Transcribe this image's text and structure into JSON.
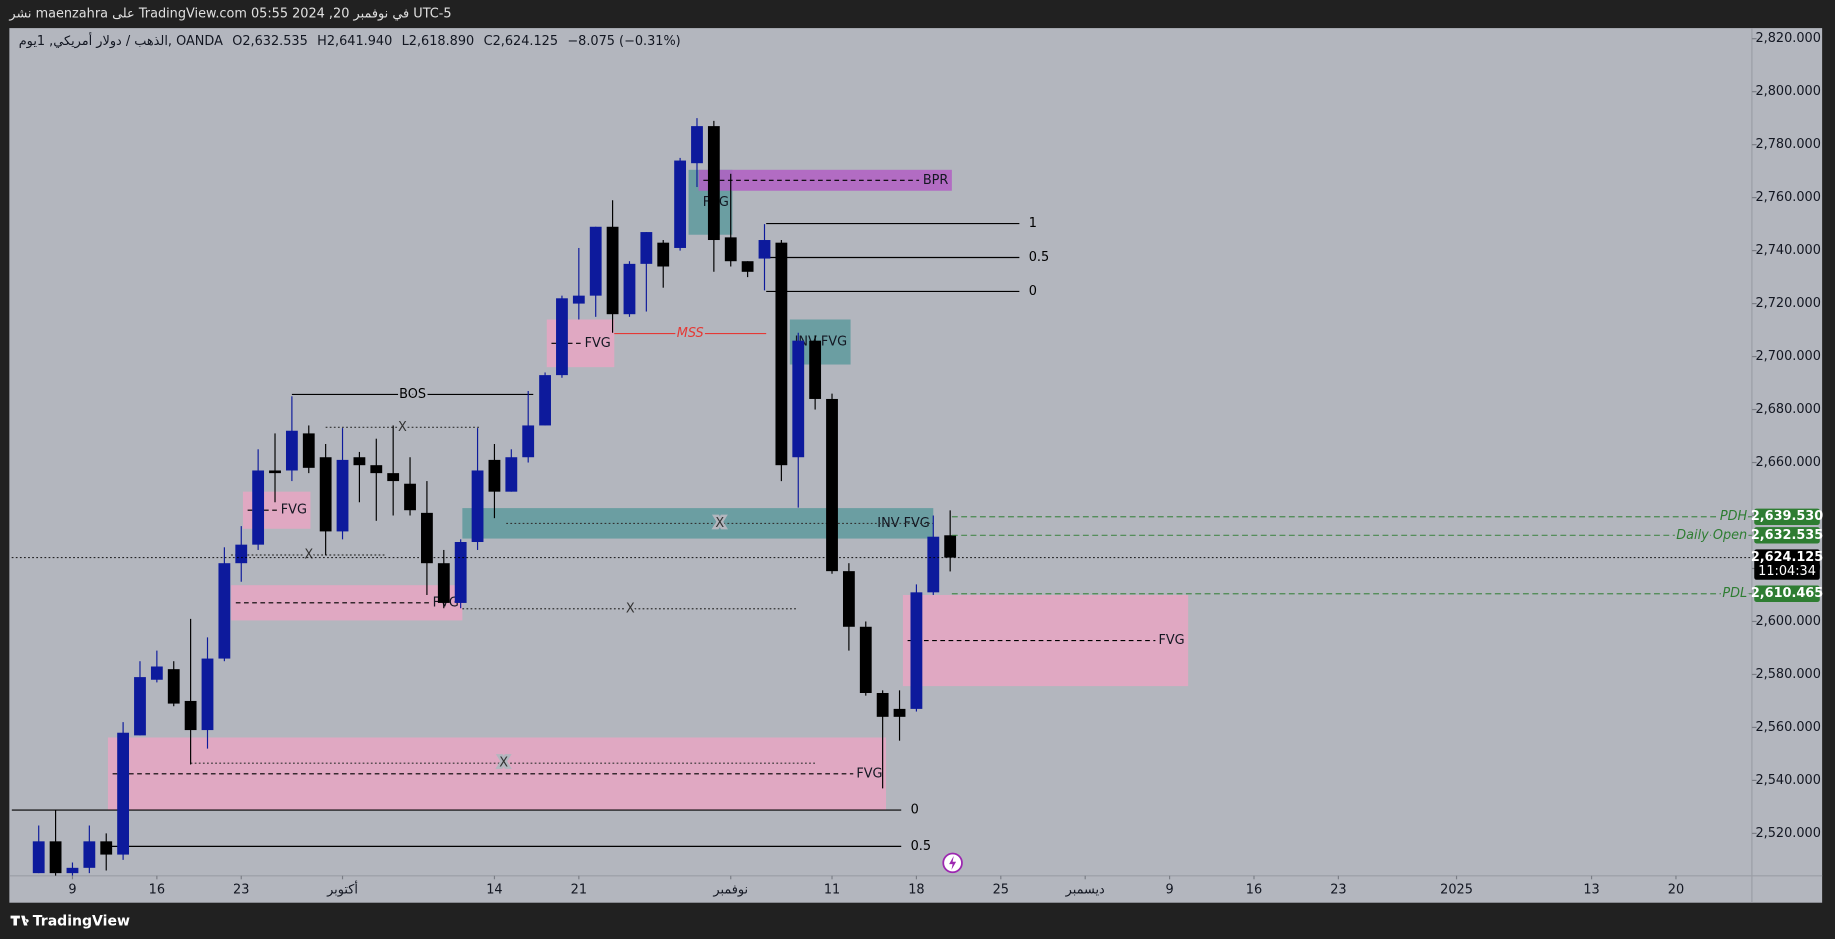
{
  "header": {
    "text": "نشر maenzahra على TradingView.com في نوفمبر 20, 2024 05:55 UTC-5"
  },
  "footer": {
    "brand": "TradingView"
  },
  "chart_data": {
    "type": "candlestick",
    "legend": {
      "symbol": "الذهب / دولار أمريكي, 1يوم, OANDA",
      "values": [
        "O2,632.535",
        "H2,641.940",
        "L2,618.890",
        "C2,624.125",
        "−8.075 (−0.31%)"
      ]
    },
    "up_color": "#0d1a9c",
    "down_color": "#000000",
    "open": [
      2505,
      2517,
      2505,
      2507,
      2517,
      2512,
      2557,
      2578,
      2582,
      2570,
      2559,
      2586,
      2622,
      2629,
      2657,
      2657,
      2671,
      2662,
      2634,
      2662,
      2659,
      2656,
      2652,
      2641,
      2622,
      2607,
      2630,
      2661,
      2649,
      2662,
      2674,
      2693,
      2720,
      2723,
      2749,
      2716,
      2735,
      2743,
      2741,
      2773,
      2787,
      2745,
      2736,
      2737,
      2743,
      2662,
      2706,
      2684,
      2619,
      2598,
      2573,
      2567,
      2567,
      2611,
      2632.535
    ],
    "high": [
      2523,
      2529,
      2509,
      2523,
      2520,
      2562,
      2585,
      2589,
      2585,
      2601,
      2594,
      2628,
      2636,
      2665,
      2671,
      2685,
      2674,
      2667,
      2673,
      2664,
      2669,
      2674,
      2662,
      2653,
      2627,
      2631,
      2673,
      2667,
      2665,
      2687,
      2694,
      2723,
      2741,
      2749,
      2759,
      2736,
      2747,
      2744,
      2775,
      2790,
      2789,
      2769,
      2736,
      2750,
      2744,
      2709,
      2708,
      2686,
      2622,
      2600,
      2574,
      2574,
      2614,
      2640,
      2641.94
    ],
    "low": [
      2505,
      2504,
      2504,
      2505,
      2506,
      2510,
      2557,
      2577,
      2568,
      2546,
      2552,
      2585,
      2615,
      2627,
      2645,
      2653,
      2656,
      2625,
      2631,
      2645,
      2638,
      2640,
      2640,
      2610,
      2605,
      2605,
      2627,
      2639,
      2649,
      2660,
      2674,
      2692,
      2714,
      2715,
      2709,
      2715,
      2717,
      2726,
      2740,
      2764,
      2732,
      2734,
      2730,
      2725,
      2653,
      2643,
      2680,
      2618,
      2589,
      2572,
      2537,
      2555,
      2566,
      2610,
      2618.89
    ],
    "close": [
      2517,
      2505,
      2507,
      2517,
      2512,
      2558,
      2579,
      2583,
      2569,
      2559,
      2586,
      2622,
      2629,
      2657,
      2656,
      2672,
      2658,
      2634,
      2661,
      2659,
      2656,
      2653,
      2642,
      2622,
      2607,
      2630,
      2657,
      2649,
      2662,
      2674,
      2693,
      2722,
      2723,
      2749,
      2716,
      2735,
      2747,
      2734,
      2774,
      2787,
      2744,
      2736,
      2732,
      2744,
      2659,
      2706,
      2684,
      2619,
      2598,
      2573,
      2564,
      2564,
      2611,
      2632,
      2624.125
    ],
    "xlim": [
      -1.6,
      101.5
    ],
    "xticks": [
      {
        "value": 2,
        "label": "9"
      },
      {
        "value": 7,
        "label": "16"
      },
      {
        "value": 12,
        "label": "23"
      },
      {
        "value": 18,
        "label": "أكتوبر"
      },
      {
        "value": 27,
        "label": "14"
      },
      {
        "value": 32,
        "label": "21"
      },
      {
        "value": 41,
        "label": "نوفمبر"
      },
      {
        "value": 47,
        "label": "11"
      },
      {
        "value": 52,
        "label": "18"
      },
      {
        "value": 57,
        "label": "25"
      },
      {
        "value": 62,
        "label": "ديسمبر"
      },
      {
        "value": 67,
        "label": "9"
      },
      {
        "value": 72,
        "label": "16"
      },
      {
        "value": 77,
        "label": "23"
      },
      {
        "value": 84,
        "label": "2025"
      },
      {
        "value": 92,
        "label": "13"
      },
      {
        "value": 97,
        "label": "20"
      }
    ],
    "ylim": [
      2504,
      2824
    ],
    "yticks": [
      {
        "value": 2520,
        "label": "2,520.000"
      },
      {
        "value": 2540,
        "label": "2,540.000"
      },
      {
        "value": 2560,
        "label": "2,560.000"
      },
      {
        "value": 2580,
        "label": "2,580.000"
      },
      {
        "value": 2600,
        "label": "2,600.000"
      },
      {
        "value": 2620,
        "label": "2,620.000"
      },
      {
        "value": 2640,
        "label": "2,640.000"
      },
      {
        "value": 2660,
        "label": "2,660.000"
      },
      {
        "value": 2680,
        "label": "2,680.000"
      },
      {
        "value": 2700,
        "label": "2,700.000"
      },
      {
        "value": 2720,
        "label": "2,720.000"
      },
      {
        "value": 2740,
        "label": "2,740.000"
      },
      {
        "value": 2760,
        "label": "2,760.000"
      },
      {
        "value": 2780,
        "label": "2,780.000"
      },
      {
        "value": 2800,
        "label": "2,800.000"
      },
      {
        "value": 2820,
        "label": "2,820.000"
      }
    ],
    "grid": false,
    "zones": [
      {
        "label": "FVG",
        "x": [
          4.1,
          50.2
        ],
        "y": [
          2528.8,
          2556.2
        ],
        "color": "#e8a6c3",
        "midline": true
      },
      {
        "label": "FVG",
        "x": [
          11.4,
          25.1
        ],
        "y": [
          2600.4,
          2613.7
        ],
        "color": "#e8a6c3",
        "midline": true
      },
      {
        "label": "FVG",
        "x": [
          12.1,
          16.1
        ],
        "y": [
          2635,
          2649
        ],
        "color": "#e8a6c3",
        "midline": true
      },
      {
        "label": "FVG",
        "x": [
          30.1,
          34.1
        ],
        "y": [
          2696,
          2714
        ],
        "color": "#e8a6c3",
        "midline": true
      },
      {
        "label": "INV FVG",
        "x": [
          25.1,
          53
        ],
        "y": [
          2631.3,
          2642.8
        ],
        "color": "#5e9a9e",
        "midline": false
      },
      {
        "label": "INV FVG",
        "x": [
          44.5,
          48.1
        ],
        "y": [
          2697,
          2714
        ],
        "color": "#5e9a9e",
        "midline": false
      },
      {
        "label": "FVG",
        "x": [
          38.5,
          41.1
        ],
        "y": [
          2746,
          2770.5
        ],
        "color": "#5e9a9e",
        "midline": false
      },
      {
        "label": "BPR",
        "x": [
          39.1,
          54.1
        ],
        "y": [
          2762.6,
          2770.5
        ],
        "color": "#b25fc4",
        "midline": true
      },
      {
        "label": "FVG",
        "x": [
          51.2,
          68.1
        ],
        "y": [
          2575.6,
          2610
        ],
        "color": "#e8a6c3",
        "midline": true
      }
    ],
    "lines": [
      {
        "label": "BOS",
        "x": [
          15,
          29.3
        ],
        "y": 2685.7,
        "style": "solid",
        "color": "#000000",
        "label_pos": "center"
      },
      {
        "label": "MSS",
        "x": [
          34.1,
          43.1
        ],
        "y": 2708.7,
        "style": "solid",
        "color": "#e53935",
        "label_pos": "center"
      },
      {
        "label": "1",
        "x": [
          43.1,
          58.1
        ],
        "y": 2750.2,
        "style": "solid",
        "color": "#000000",
        "label_pos": "right"
      },
      {
        "label": "0.5",
        "x": [
          43.1,
          58.1
        ],
        "y": 2737.4,
        "style": "solid",
        "color": "#000000",
        "label_pos": "right"
      },
      {
        "label": "0",
        "x": [
          43.1,
          58.1
        ],
        "y": 2724.6,
        "style": "solid",
        "color": "#000000",
        "label_pos": "right"
      },
      {
        "label": "0",
        "x": [
          -1.6,
          51.1
        ],
        "y": 2528.8,
        "style": "solid",
        "color": "#000000",
        "label_pos": "right"
      },
      {
        "label": "0.5",
        "x": [
          4.1,
          51.1
        ],
        "y": 2515.1,
        "style": "solid",
        "color": "#000000",
        "label_pos": "right"
      },
      {
        "label": "X",
        "x": [
          17,
          26.1
        ],
        "y": 2673.3,
        "style": "dotted",
        "color": "#333333",
        "label_pos": "center"
      },
      {
        "label": "X",
        "x": [
          11.4,
          20.6
        ],
        "y": 2625.1,
        "style": "dotted",
        "color": "#333333",
        "label_pos": "center"
      },
      {
        "label": "X",
        "x": [
          25.1,
          45
        ],
        "y": 2604.8,
        "style": "dotted",
        "color": "#333333",
        "label_pos": "center"
      },
      {
        "label": "X",
        "x": [
          9,
          46.1
        ],
        "y": 2546.5,
        "style": "dotted",
        "color": "#333333",
        "label_pos": "center"
      },
      {
        "label": "X",
        "x": [
          27.7,
          53
        ],
        "y": 2637,
        "style": "dotted",
        "color": "#333333",
        "label_pos": "center"
      }
    ],
    "price_labels": [
      {
        "name": "PDH",
        "value": 2639.53,
        "label": "2,639.530",
        "color": "#2e7d32",
        "from": 54.1
      },
      {
        "name": "Daily Open",
        "value": 2632.535,
        "label": "2,632.535",
        "color": "#2e7d32",
        "from": 54.1
      },
      {
        "value": 2624.125,
        "label": "2,624.125",
        "countdown": "11:04:34",
        "color": "#000000",
        "from": -1.6
      },
      {
        "name": "PDL",
        "value": 2610.465,
        "label": "2,610.465",
        "color": "#2e7d32",
        "from": 54.1
      }
    ]
  }
}
